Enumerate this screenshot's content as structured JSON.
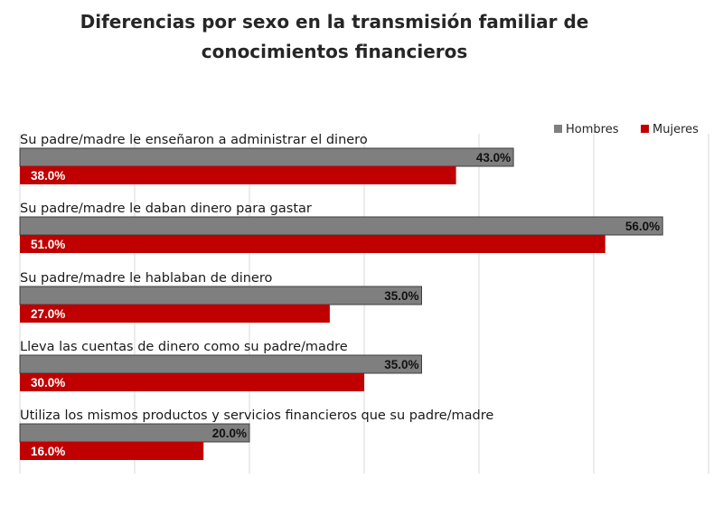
{
  "chart_data": {
    "type": "bar",
    "orientation": "horizontal",
    "title": "Diferencias por sexo en la transmisión familiar de conocimientos financieros",
    "title_lines": [
      "Diferencias por sexo en la transmisión familiar de",
      "conocimientos financieros"
    ],
    "categories": [
      "Su padre/madre le enseñaron a administrar el dinero",
      "Su padre/madre le daban dinero para gastar",
      "Su padre/madre le hablaban de dinero",
      "Lleva las cuentas de dinero como su padre/madre",
      "Utiliza los mismos productos y servicios financieros que su padre/madre"
    ],
    "series": [
      {
        "name": "Hombres",
        "color": "#7f7f7f",
        "values": [
          43.0,
          56.0,
          35.0,
          35.0,
          20.0
        ],
        "labels": [
          "43.0%",
          "56.0%",
          "35.0%",
          "35.0%",
          "20.0%"
        ]
      },
      {
        "name": "Mujeres",
        "color": "#c00000",
        "values": [
          38.0,
          51.0,
          27.0,
          30.0,
          16.0
        ],
        "labels": [
          "38.0%",
          "51.0%",
          "27.0%",
          "30.0%",
          "16.0%"
        ]
      }
    ],
    "xlim": [
      0,
      60
    ],
    "x_gridlines": [
      0,
      10,
      20,
      30,
      40,
      50,
      60
    ],
    "grid": true,
    "legend_position": "top-right"
  }
}
